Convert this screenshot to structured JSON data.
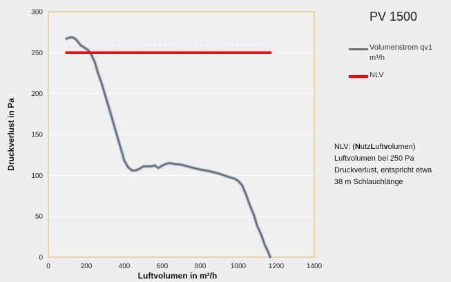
{
  "chart_data": {
    "type": "line",
    "title": "PV 1500",
    "xlabel": "Luftvolumen in m³/h",
    "ylabel": "Druckverlust in Pa",
    "xlim": [
      0,
      1400
    ],
    "ylim": [
      0,
      300
    ],
    "xticks": [
      "0",
      "200",
      "400",
      "600",
      "800",
      "1000",
      "1200",
      "1400"
    ],
    "yticks": [
      "0",
      "50",
      "100",
      "150",
      "200",
      "250",
      "300"
    ],
    "grid": true,
    "legend_position": "right",
    "series": [
      {
        "name": "Volumenstrom qv1 m³/h",
        "color": "#6e6e6e",
        "x": [
          95,
          105,
          120,
          135,
          150,
          170,
          190,
          210,
          225,
          245,
          260,
          280,
          300,
          320,
          340,
          360,
          380,
          400,
          420,
          440,
          460,
          480,
          500,
          520,
          540,
          560,
          580,
          600,
          620,
          640,
          660,
          700,
          750,
          800,
          850,
          900,
          950,
          980,
          1000,
          1020,
          1040,
          1060,
          1080,
          1100,
          1120,
          1140,
          1160,
          1168
        ],
        "y": [
          267,
          268,
          269,
          268,
          265,
          259,
          256,
          253,
          248,
          238,
          226,
          213,
          197,
          182,
          166,
          150,
          134,
          118,
          110,
          106,
          106,
          108,
          111,
          111,
          111,
          112,
          109,
          112,
          114,
          115,
          114,
          113,
          110,
          107,
          105,
          102,
          98,
          96,
          93,
          88,
          77,
          64,
          53,
          38,
          28,
          15,
          5,
          0
        ]
      },
      {
        "name": "NLV",
        "color": "#ff0000",
        "x": [
          95,
          1170
        ],
        "y": [
          250,
          250
        ]
      }
    ],
    "reference_line": {
      "y": 260,
      "style": "dotted",
      "color": "#ffffff"
    }
  },
  "legend": {
    "item1": "Volumenstrom qv1 m³/h",
    "item2": "NLV"
  },
  "note": {
    "line1_prefix": "NLV: (",
    "line1_n": "N",
    "line1_utz": "utz",
    "line1_l": "L",
    "line1_uft": "uft",
    "line1_v": "v",
    "line1_olumen": "olumen",
    "line1_suffix": ")",
    "line2": "Luftvolumen bei 250 Pa",
    "line3": "Druckverlust, entspricht etwa",
    "line4": "38 m Schlauchlänge"
  }
}
